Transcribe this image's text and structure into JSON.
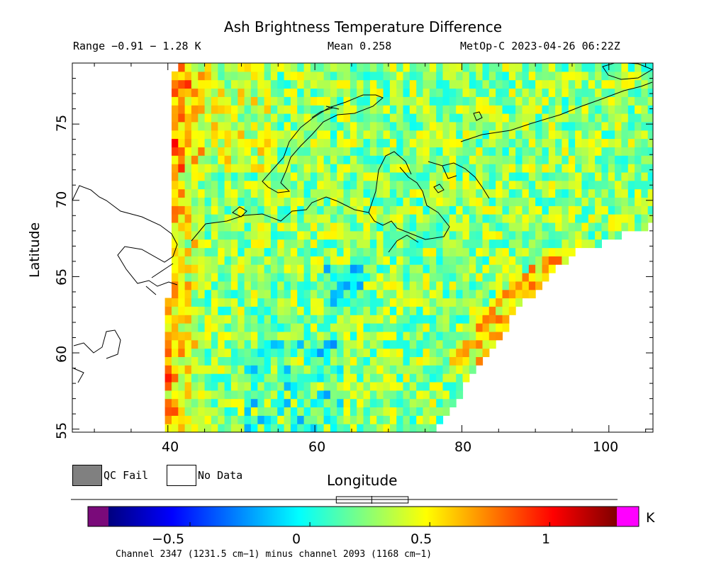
{
  "chart_data": {
    "type": "heatmap",
    "title": "Ash Brightness Temperature Difference",
    "range_text": "Range −0.91 − 1.28 K",
    "mean_text": "Mean 0.258",
    "source_text": "MetOp-C 2023-04-26 06:22Z",
    "xlabel": "Longitude",
    "ylabel": "Latitude",
    "xlim": [
      27,
      106
    ],
    "ylim": [
      54.8,
      79
    ],
    "x_ticks": [
      40,
      60,
      80,
      100
    ],
    "y_ticks": [
      55,
      60,
      65,
      70,
      75
    ],
    "grid": false,
    "colorbar": {
      "min": -0.84,
      "max": 1.28,
      "unit": "K",
      "ticks": [
        {
          "value": -0.5,
          "label": "−0.5"
        },
        {
          "value": 0,
          "label": "0"
        },
        {
          "value": 0.5,
          "label": "0.5"
        },
        {
          "value": 1,
          "label": "1"
        }
      ],
      "under_color": "#7a0a7a",
      "over_color": "#ff00ff",
      "mean_marker": 0.258,
      "box_range": [
        0.11,
        0.41
      ],
      "caption": "Channel 2347 (1231.5 cm−1) minus channel 2093 (1168 cm−1)"
    },
    "legend": [
      {
        "label": "QC Fail",
        "color": "#808080"
      },
      {
        "label": "No Data",
        "color": "#ffffff"
      }
    ],
    "swath": {
      "west_edge": [
        [
          41.0,
          79
        ],
        [
          40.3,
          70
        ],
        [
          40.0,
          62
        ],
        [
          40.0,
          54.8
        ]
      ],
      "east_edge": [
        [
          76.5,
          54.8
        ],
        [
          82,
          59
        ],
        [
          88,
          63
        ],
        [
          95,
          66.5
        ],
        [
          106,
          68.4
        ]
      ]
    }
  }
}
